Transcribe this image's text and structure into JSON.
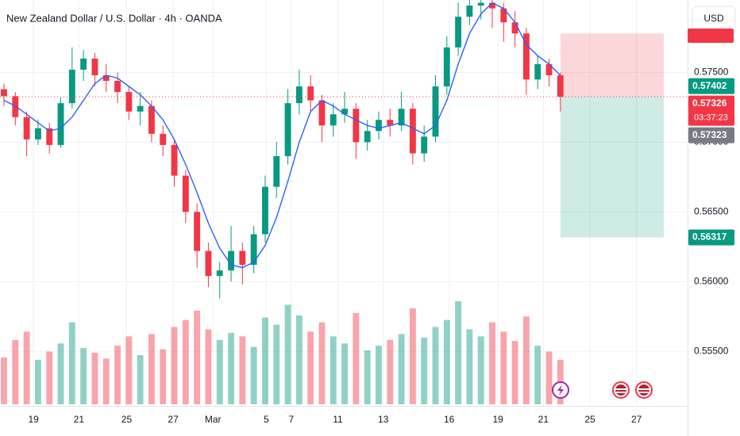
{
  "chart_data": {
    "type": "candlestick",
    "title": "New Zealand Dollar / U.S. Dollar · 4h · OANDA",
    "axis_currency": "USD",
    "up_color": "#089981",
    "down_color": "#f23645",
    "ylim": [
      0.5512,
      0.5802
    ],
    "yticks": [
      {
        "value": 0.555,
        "label": "0.55500"
      },
      {
        "value": 0.56,
        "label": "0.56000"
      },
      {
        "value": 0.565,
        "label": "0.56500"
      },
      {
        "value": 0.57,
        "label": "0.57000"
      },
      {
        "value": 0.575,
        "label": "0.57500"
      }
    ],
    "xlim": [
      -0.35,
      60.2
    ],
    "xticks": [
      {
        "value": 2.6,
        "label": "19"
      },
      {
        "value": 6.6,
        "label": "21"
      },
      {
        "value": 10.8,
        "label": "25"
      },
      {
        "value": 14.9,
        "label": "27"
      },
      {
        "value": 18.4,
        "label": "Mar"
      },
      {
        "value": 23.1,
        "label": "5"
      },
      {
        "value": 25.3,
        "label": "7"
      },
      {
        "value": 29.4,
        "label": "11"
      },
      {
        "value": 33.4,
        "label": "13"
      },
      {
        "value": 39.2,
        "label": "16"
      },
      {
        "value": 43.5,
        "label": "19"
      },
      {
        "value": 47.5,
        "label": "21"
      },
      {
        "value": 51.6,
        "label": "25"
      },
      {
        "value": 55.7,
        "label": "27"
      }
    ],
    "grid": true,
    "ohlc": [
      [
        0.5738,
        0.5742,
        0.5726,
        0.5733
      ],
      [
        0.5733,
        0.5736,
        0.5712,
        0.5718
      ],
      [
        0.5718,
        0.5722,
        0.569,
        0.5702
      ],
      [
        0.5702,
        0.5716,
        0.5698,
        0.571
      ],
      [
        0.571,
        0.5714,
        0.5692,
        0.5698
      ],
      [
        0.5698,
        0.5732,
        0.5696,
        0.5728
      ],
      [
        0.5728,
        0.5768,
        0.5724,
        0.5752
      ],
      [
        0.5752,
        0.5766,
        0.5744,
        0.576
      ],
      [
        0.576,
        0.5764,
        0.574,
        0.5748
      ],
      [
        0.5748,
        0.5756,
        0.5736,
        0.5744
      ],
      [
        0.5744,
        0.575,
        0.5728,
        0.5736
      ],
      [
        0.5736,
        0.574,
        0.5716,
        0.5722
      ],
      [
        0.5722,
        0.5736,
        0.5712,
        0.5726
      ],
      [
        0.5726,
        0.573,
        0.57,
        0.5706
      ],
      [
        0.5706,
        0.5712,
        0.569,
        0.5698
      ],
      [
        0.5698,
        0.5702,
        0.5668,
        0.5676
      ],
      [
        0.5676,
        0.568,
        0.5642,
        0.565
      ],
      [
        0.565,
        0.5656,
        0.561,
        0.5622
      ],
      [
        0.5622,
        0.5628,
        0.5596,
        0.5604
      ],
      [
        0.5604,
        0.5614,
        0.5588,
        0.5608
      ],
      [
        0.5608,
        0.564,
        0.56,
        0.5622
      ],
      [
        0.5622,
        0.5628,
        0.5598,
        0.5612
      ],
      [
        0.5612,
        0.564,
        0.5606,
        0.5634
      ],
      [
        0.5634,
        0.5676,
        0.5628,
        0.5668
      ],
      [
        0.5668,
        0.57,
        0.566,
        0.569
      ],
      [
        0.569,
        0.5738,
        0.5684,
        0.5728
      ],
      [
        0.5728,
        0.5752,
        0.572,
        0.574
      ],
      [
        0.574,
        0.5748,
        0.5722,
        0.573
      ],
      [
        0.573,
        0.5734,
        0.57,
        0.5712
      ],
      [
        0.5712,
        0.5728,
        0.5704,
        0.572
      ],
      [
        0.572,
        0.5736,
        0.5714,
        0.5724
      ],
      [
        0.5724,
        0.5728,
        0.5688,
        0.57
      ],
      [
        0.57,
        0.5716,
        0.5694,
        0.5708
      ],
      [
        0.5708,
        0.5722,
        0.5702,
        0.5716
      ],
      [
        0.5716,
        0.5724,
        0.5704,
        0.5712
      ],
      [
        0.5712,
        0.5736,
        0.5708,
        0.5724
      ],
      [
        0.5724,
        0.5728,
        0.5684,
        0.5692
      ],
      [
        0.5692,
        0.5712,
        0.5686,
        0.5704
      ],
      [
        0.5704,
        0.5748,
        0.57,
        0.574
      ],
      [
        0.574,
        0.5776,
        0.5734,
        0.5768
      ],
      [
        0.5768,
        0.58,
        0.5762,
        0.579
      ],
      [
        0.579,
        0.5802,
        0.5784,
        0.5798
      ],
      [
        0.5798,
        0.5802,
        0.5788,
        0.58
      ],
      [
        0.58,
        0.5802,
        0.5782,
        0.5796
      ],
      [
        0.5796,
        0.58,
        0.5772,
        0.5786
      ],
      [
        0.5786,
        0.5794,
        0.5768,
        0.5778
      ],
      [
        0.5778,
        0.5782,
        0.5734,
        0.5745
      ],
      [
        0.5745,
        0.5762,
        0.5738,
        0.5756
      ],
      [
        0.5756,
        0.576,
        0.574,
        0.5748
      ],
      [
        0.5748,
        0.575,
        0.5722,
        0.57326
      ]
    ],
    "volumes": [
      40,
      55,
      62,
      38,
      45,
      52,
      70,
      48,
      44,
      39,
      50,
      58,
      42,
      60,
      47,
      66,
      72,
      80,
      64,
      55,
      61,
      58,
      49,
      74,
      68,
      85,
      76,
      62,
      70,
      58,
      52,
      78,
      46,
      50,
      55,
      60,
      82,
      57,
      66,
      72,
      88,
      64,
      58,
      70,
      62,
      54,
      75,
      50,
      45,
      38
    ],
    "ma": {
      "color": "#2962ff",
      "values": [
        0.573,
        0.5726,
        0.572,
        0.5714,
        0.5708,
        0.571,
        0.5718,
        0.573,
        0.5742,
        0.5748,
        0.5746,
        0.574,
        0.5734,
        0.5726,
        0.5716,
        0.5702,
        0.5684,
        0.5664,
        0.5642,
        0.5624,
        0.5612,
        0.561,
        0.5614,
        0.5626,
        0.5646,
        0.5672,
        0.57,
        0.5722,
        0.573,
        0.5726,
        0.572,
        0.5716,
        0.5712,
        0.571,
        0.5712,
        0.5714,
        0.571,
        0.5706,
        0.5712,
        0.573,
        0.5756,
        0.5778,
        0.5792,
        0.58,
        0.5796,
        0.5786,
        0.577,
        0.5762,
        0.5756,
        0.5748
      ]
    },
    "position": {
      "stop": 0.5778,
      "entry": 0.57326,
      "target": 0.56317
    },
    "price_labels": [
      {
        "value": 0.57402,
        "color": "#089981"
      },
      {
        "value": 0.57326,
        "sublabel": "03:37:23",
        "color": "#f23645"
      },
      {
        "value": 0.57323,
        "color": "#787b86"
      },
      {
        "value": 0.56317,
        "color": "#089981"
      }
    ]
  }
}
